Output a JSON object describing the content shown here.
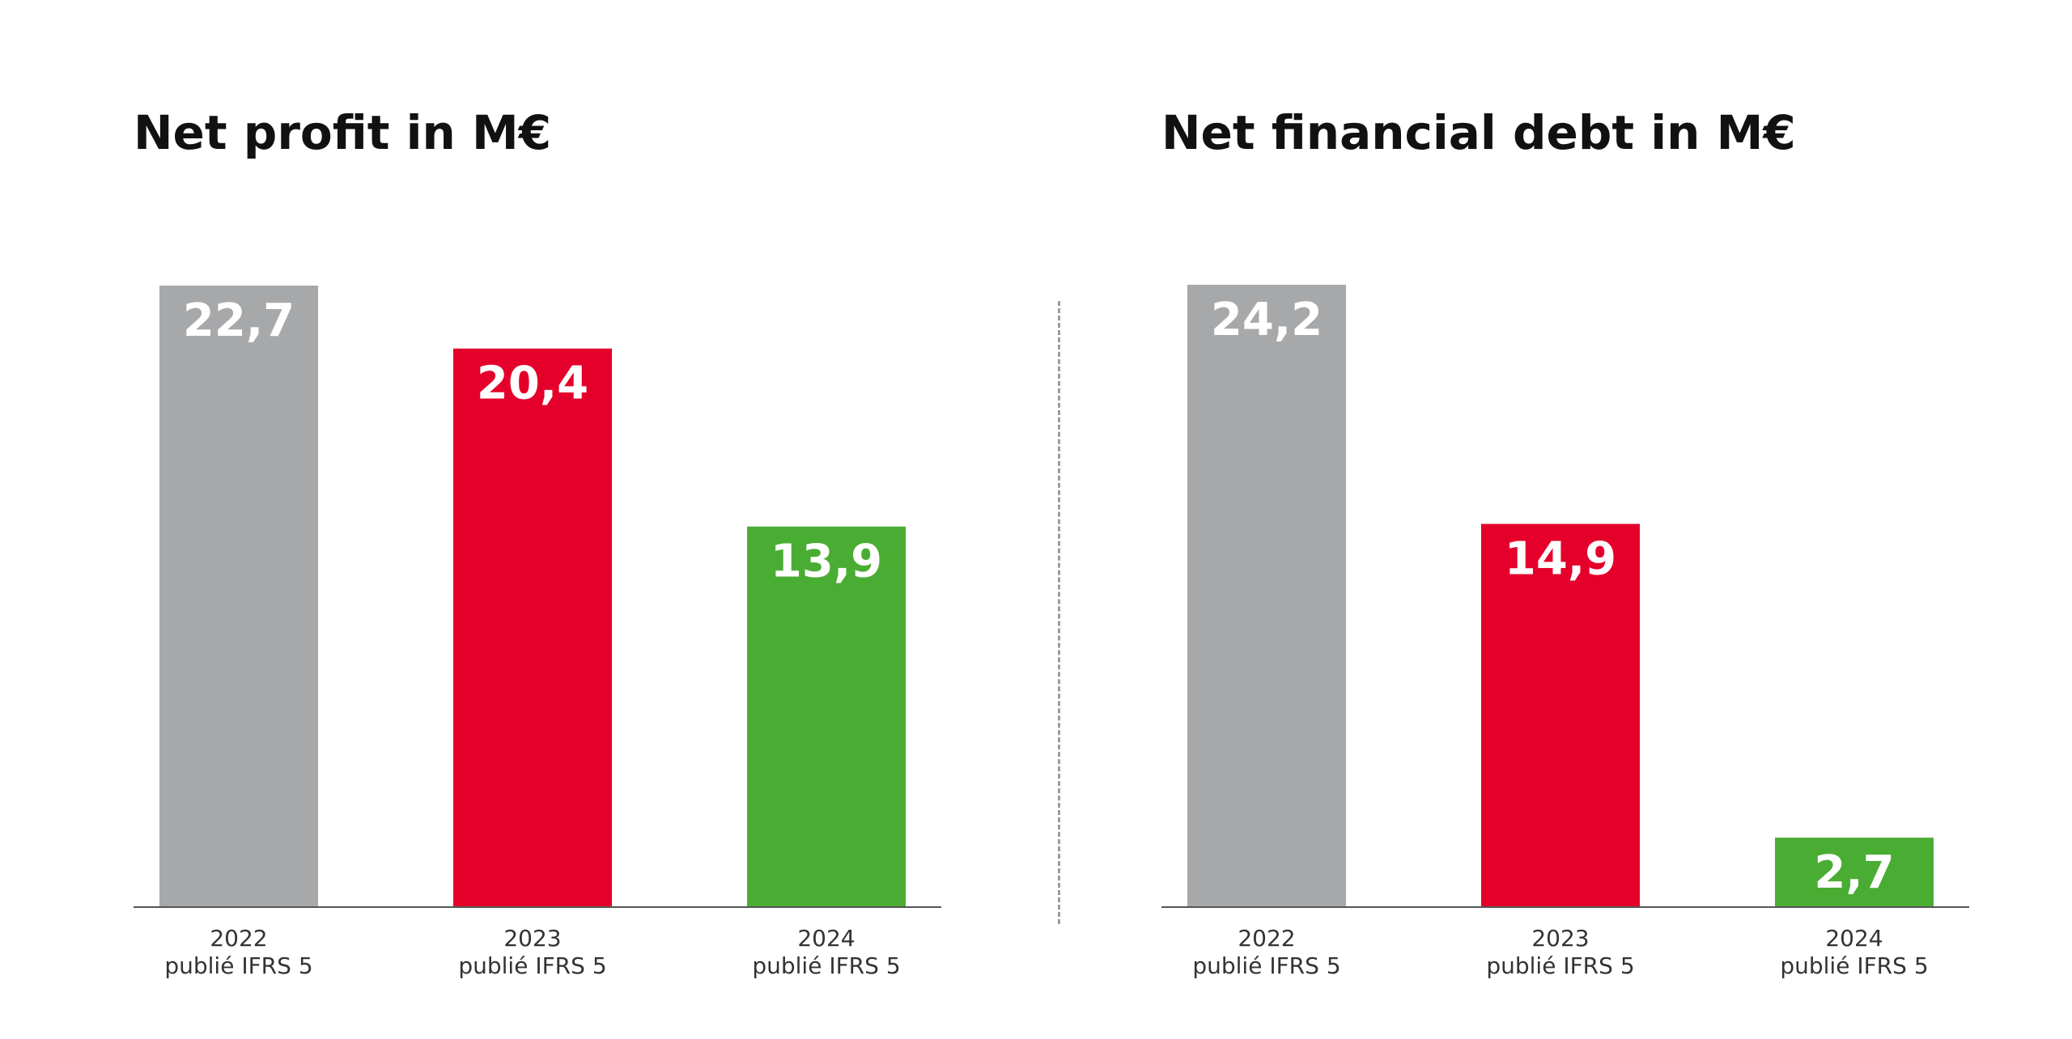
{
  "colors": {
    "y2022": "#a7a8aa",
    "y2023": "#e4002b",
    "y2024": "#4aad33",
    "axis": "#555555",
    "value_text": "#ffffff"
  },
  "chart_data": [
    {
      "type": "bar",
      "title": "Net profit in M€",
      "xlabel": "",
      "ylabel": "",
      "ylim": [
        0,
        23.2
      ],
      "grid": false,
      "categories": [
        {
          "year": "2022",
          "note": "publié IFRS 5"
        },
        {
          "year": "2023",
          "note": "publié IFRS 5"
        },
        {
          "year": "2024",
          "note": "publié IFRS 5"
        }
      ],
      "values": [
        22.7,
        20.4,
        13.9
      ],
      "value_labels": [
        "22,7",
        "20,4",
        "13,9"
      ],
      "bar_colors": [
        "#a7a8aa",
        "#e4002b",
        "#4aad33"
      ]
    },
    {
      "type": "bar",
      "title": "Net financial debt in M€",
      "xlabel": "",
      "ylabel": "",
      "ylim": [
        0,
        24.7
      ],
      "grid": false,
      "categories": [
        {
          "year": "2022",
          "note": "publié IFRS 5"
        },
        {
          "year": "2023",
          "note": "publié IFRS 5"
        },
        {
          "year": "2024",
          "note": "publié IFRS 5"
        }
      ],
      "values": [
        24.2,
        14.9,
        2.7
      ],
      "value_labels": [
        "24,2",
        "14,9",
        "2,7"
      ],
      "bar_colors": [
        "#a7a8aa",
        "#e4002b",
        "#4aad33"
      ]
    }
  ]
}
